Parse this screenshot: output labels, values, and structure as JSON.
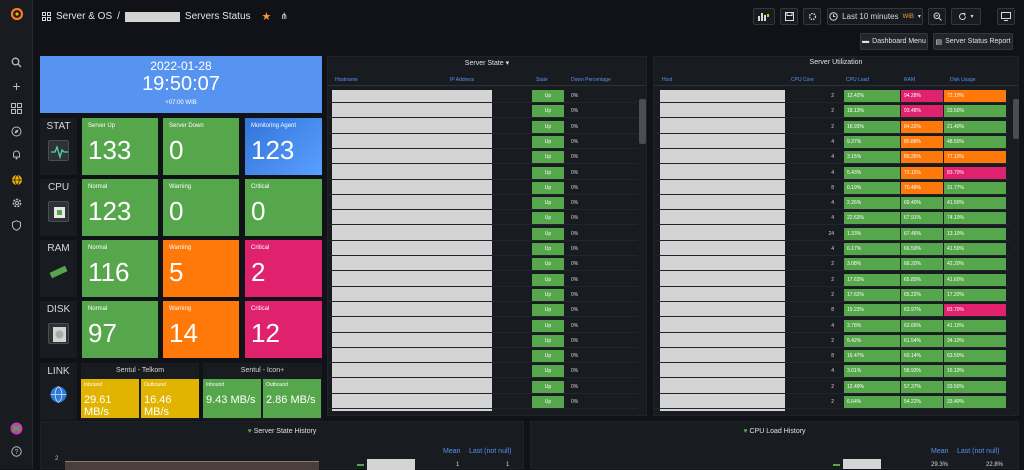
{
  "header": {
    "crumb_folder": "Server & OS",
    "crumb_sep": "/",
    "dashboard_title": "Servers Status",
    "time_range": "Last 10 minutes",
    "timezone": "WIB",
    "dashboard_menu": "Dashboard Menu",
    "status_report": "Server Status Report"
  },
  "clock": {
    "date": "2022-01-28",
    "time": "19:50:07",
    "tz": "+07:00 WIB"
  },
  "rows": [
    {
      "label": "STAT",
      "icon": "pulse-icon",
      "tiles": [
        {
          "label": "Server Up",
          "value": "133",
          "color": "green"
        },
        {
          "label": "Server Down",
          "value": "0",
          "color": "green"
        },
        {
          "label": "Monitoring Agent",
          "value": "123",
          "color": "blue"
        }
      ]
    },
    {
      "label": "CPU",
      "icon": "cpu-icon",
      "tiles": [
        {
          "label": "Normal",
          "value": "123",
          "color": "green"
        },
        {
          "label": "Warning",
          "value": "0",
          "color": "green"
        },
        {
          "label": "Critical",
          "value": "0",
          "color": "green"
        }
      ]
    },
    {
      "label": "RAM",
      "icon": "ram-icon",
      "tiles": [
        {
          "label": "Normal",
          "value": "116",
          "color": "green"
        },
        {
          "label": "Warning",
          "value": "5",
          "color": "orange"
        },
        {
          "label": "Critical",
          "value": "2",
          "color": "red"
        }
      ]
    },
    {
      "label": "DISK",
      "icon": "disk-icon",
      "tiles": [
        {
          "label": "Normal",
          "value": "97",
          "color": "green"
        },
        {
          "label": "Warning",
          "value": "14",
          "color": "orange"
        },
        {
          "label": "Critical",
          "value": "12",
          "color": "red"
        }
      ]
    }
  ],
  "link": {
    "label": "LINK",
    "groups": [
      {
        "title": "Sentul - Telkom",
        "tiles": [
          {
            "label": "Inbound",
            "value": "29.61 MB/s",
            "color": "#e0b400"
          },
          {
            "label": "Outbound",
            "value": "16.46 MB/s",
            "color": "#e0b400"
          }
        ]
      },
      {
        "title": "Sentul - Icon+",
        "tiles": [
          {
            "label": "Inbound",
            "value": "9.43 MB/s",
            "color": "#56a64b"
          },
          {
            "label": "Outbound",
            "value": "2.86 MB/s",
            "color": "#56a64b"
          }
        ]
      }
    ]
  },
  "server_state": {
    "title": "Server State",
    "columns": [
      "Hostname",
      "IP Address",
      "State",
      "Down Percentage"
    ],
    "state": "Up",
    "down_pct": "0%"
  },
  "server_util": {
    "title": "Server Utilization",
    "columns": [
      "Host",
      "CPU Core",
      "CPU Load",
      "RAM",
      "Disk Usage"
    ],
    "rows": [
      {
        "core": "2",
        "cpu": "12.42%",
        "ram": "94.28%",
        "disk": "72.10%",
        "rc": "red",
        "dc": "orange"
      },
      {
        "core": "2",
        "cpu": "18.13%",
        "ram": "93.48%",
        "disk": "33.50%",
        "rc": "red",
        "dc": "green"
      },
      {
        "core": "2",
        "cpu": "16.93%",
        "ram": "84.22%",
        "disk": "21.40%",
        "rc": "orange",
        "dc": "green"
      },
      {
        "core": "4",
        "cpu": "9.37%",
        "ram": "80.88%",
        "disk": "48.50%",
        "rc": "orange",
        "dc": "green"
      },
      {
        "core": "4",
        "cpu": "3.15%",
        "ram": "80.35%",
        "disk": "77.10%",
        "rc": "orange",
        "dc": "orange"
      },
      {
        "core": "4",
        "cpu": "5.43%",
        "ram": "73.15%",
        "disk": "83.70%",
        "rc": "orange",
        "dc": "red"
      },
      {
        "core": "8",
        "cpu": "0.19%",
        "ram": "70.49%",
        "disk": "31.77%",
        "rc": "orange",
        "dc": "green"
      },
      {
        "core": "4",
        "cpu": "2.26%",
        "ram": "69.40%",
        "disk": "41.50%",
        "rc": "green",
        "dc": "green"
      },
      {
        "core": "4",
        "cpu": "22.63%",
        "ram": "67.91%",
        "disk": "74.10%",
        "rc": "green",
        "dc": "green"
      },
      {
        "core": "24",
        "cpu": "1.33%",
        "ram": "67.46%",
        "disk": "13.10%",
        "rc": "green",
        "dc": "green"
      },
      {
        "core": "4",
        "cpu": "6.17%",
        "ram": "66.50%",
        "disk": "41.50%",
        "rc": "green",
        "dc": "green"
      },
      {
        "core": "2",
        "cpu": "3.08%",
        "ram": "66.20%",
        "disk": "42.20%",
        "rc": "green",
        "dc": "green"
      },
      {
        "core": "2",
        "cpu": "17.63%",
        "ram": "65.80%",
        "disk": "41.60%",
        "rc": "green",
        "dc": "green"
      },
      {
        "core": "2",
        "cpu": "17.62%",
        "ram": "65.22%",
        "disk": "17.20%",
        "rc": "green",
        "dc": "green"
      },
      {
        "core": "8",
        "cpu": "19.23%",
        "ram": "63.97%",
        "disk": "83.70%",
        "rc": "green",
        "dc": "red"
      },
      {
        "core": "4",
        "cpu": "3.78%",
        "ram": "62.66%",
        "disk": "41.10%",
        "rc": "green",
        "dc": "green"
      },
      {
        "core": "2",
        "cpu": "5.42%",
        "ram": "61.54%",
        "disk": "34.10%",
        "rc": "green",
        "dc": "green"
      },
      {
        "core": "8",
        "cpu": "16.47%",
        "ram": "60.14%",
        "disk": "63.50%",
        "rc": "green",
        "dc": "green"
      },
      {
        "core": "4",
        "cpu": "3.01%",
        "ram": "58.93%",
        "disk": "16.10%",
        "rc": "green",
        "dc": "green"
      },
      {
        "core": "2",
        "cpu": "12.49%",
        "ram": "57.37%",
        "disk": "33.50%",
        "rc": "green",
        "dc": "green"
      },
      {
        "core": "2",
        "cpu": "6.64%",
        "ram": "54.22%",
        "disk": "33.40%",
        "rc": "green",
        "dc": "green"
      }
    ]
  },
  "history": {
    "state_title": "Server State History",
    "cpu_title": "CPU Load History",
    "mean": "Mean",
    "last": "Last (not null)",
    "state_axis": "2",
    "state_mean": "1",
    "state_last": "1",
    "cpu_mean": "29.3%",
    "cpu_last": "22.8%"
  },
  "colors": {
    "green": "#56a64b",
    "orange": "#ff780a",
    "red": "#e0226e",
    "blue": "#5794f2"
  }
}
